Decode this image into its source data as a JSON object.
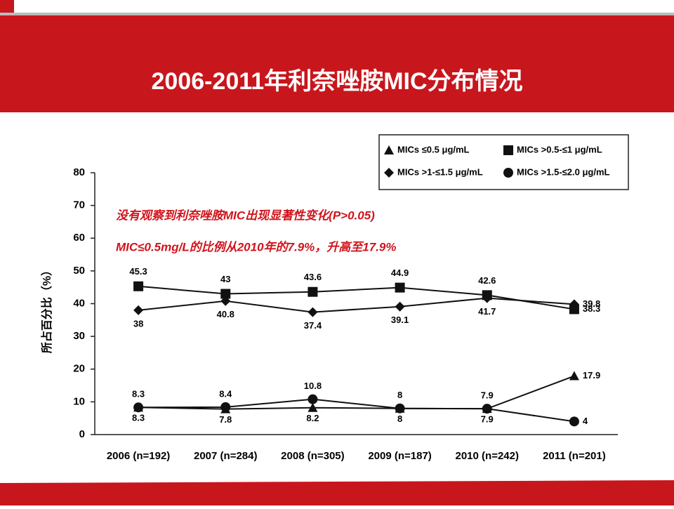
{
  "chart_data": {
    "type": "line",
    "title": "2006-2011年利奈唑胺MIC分布情况",
    "y_label": "所占百分比（%）",
    "annotations": [
      "没有观察到利奈唑胺MIC出现显著性变化(P>0.05)",
      "MIC≤0.5mg/L的比例从2010年的7.9%，升高至17.9%"
    ],
    "categories": [
      "2006 (n=192)",
      "2007 (n=284)",
      "2008 (n=305)",
      "2009 (n=187)",
      "2010 (n=242)",
      "2011 (n=201)"
    ],
    "series": [
      {
        "name": "MICs ≤0.5 μg/mL",
        "color": "#111111",
        "marker": "triangle",
        "values": [
          8.3,
          7.8,
          8.2,
          8,
          7.9,
          17.9
        ]
      },
      {
        "name": "MICs >0.5-≤1 μg/mL",
        "color": "#111111",
        "marker": "square",
        "values": [
          45.3,
          43,
          43.6,
          44.9,
          42.6,
          38.3
        ]
      },
      {
        "name": "MICs >1-≤1.5 μg/mL",
        "color": "#111111",
        "marker": "diamond",
        "values": [
          38,
          40.8,
          37.4,
          39.1,
          41.7,
          39.8
        ]
      },
      {
        "name": "MICs >1.5-≤2.0 μg/mL",
        "color": "#111111",
        "marker": "circle",
        "values": [
          8.3,
          8.4,
          10.8,
          8,
          7.9,
          4
        ]
      }
    ],
    "ylim": [
      0,
      80
    ],
    "yticks": [
      0,
      10,
      20,
      30,
      40,
      50,
      60,
      70,
      80
    ]
  }
}
